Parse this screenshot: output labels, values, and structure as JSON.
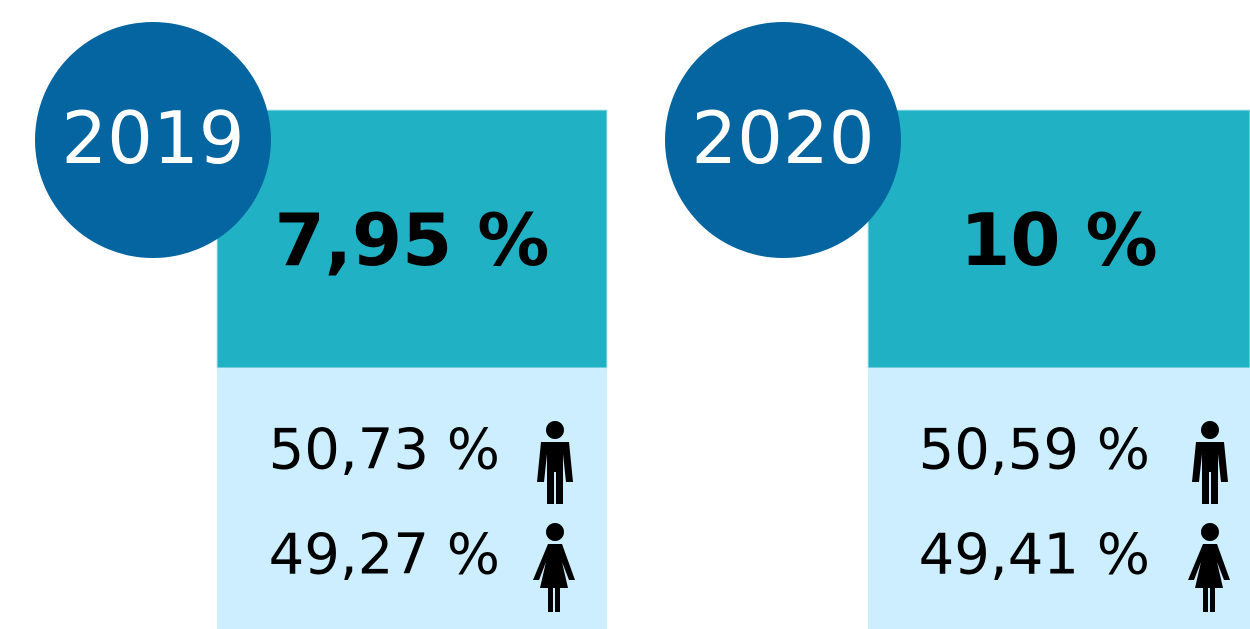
{
  "panels": [
    {
      "year": "2019",
      "total": "7,95 %",
      "male": "50,73 %",
      "female": "49,27 %"
    },
    {
      "year": "2020",
      "total": "10 %",
      "male": "50,59 %",
      "female": "49,41 %"
    }
  ]
}
